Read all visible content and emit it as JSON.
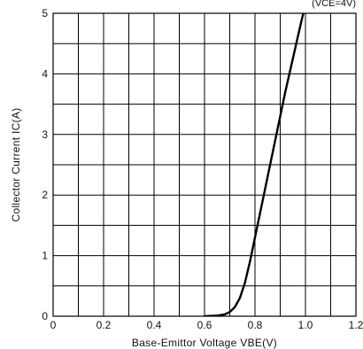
{
  "chart_data": {
    "type": "line",
    "xlabel": "Base-Emittor Voltage VBE(V)",
    "ylabel": "Collector Current IC(A)",
    "condition_label": "(VCE=4V)",
    "xlim": [
      0,
      1.2
    ],
    "ylim": [
      0,
      5
    ],
    "x_ticks": [
      0,
      0.2,
      0.4,
      0.6,
      0.8,
      1.0,
      1.2
    ],
    "x_tick_labels": [
      "0",
      "0.2",
      "0.4",
      "0.6",
      "0.8",
      "1.0",
      "1.2"
    ],
    "y_ticks": [
      0,
      1,
      2,
      3,
      4,
      5
    ],
    "y_tick_labels": [
      "0",
      "1",
      "2",
      "3",
      "4",
      "5"
    ],
    "x_minor_grid_step": 0.1,
    "y_minor_grid_step": 0.5,
    "grid": true,
    "series": [
      {
        "color": "#000000",
        "x": [
          0.6,
          0.65,
          0.68,
          0.7,
          0.72,
          0.74,
          0.76,
          0.78,
          0.8,
          0.82,
          0.85,
          0.88,
          0.9,
          0.92,
          0.95,
          0.98,
          1.0
        ],
        "y": [
          0.0,
          0.01,
          0.03,
          0.07,
          0.15,
          0.3,
          0.55,
          0.9,
          1.3,
          1.7,
          2.3,
          2.9,
          3.3,
          3.7,
          4.25,
          4.8,
          5.15
        ]
      }
    ]
  }
}
